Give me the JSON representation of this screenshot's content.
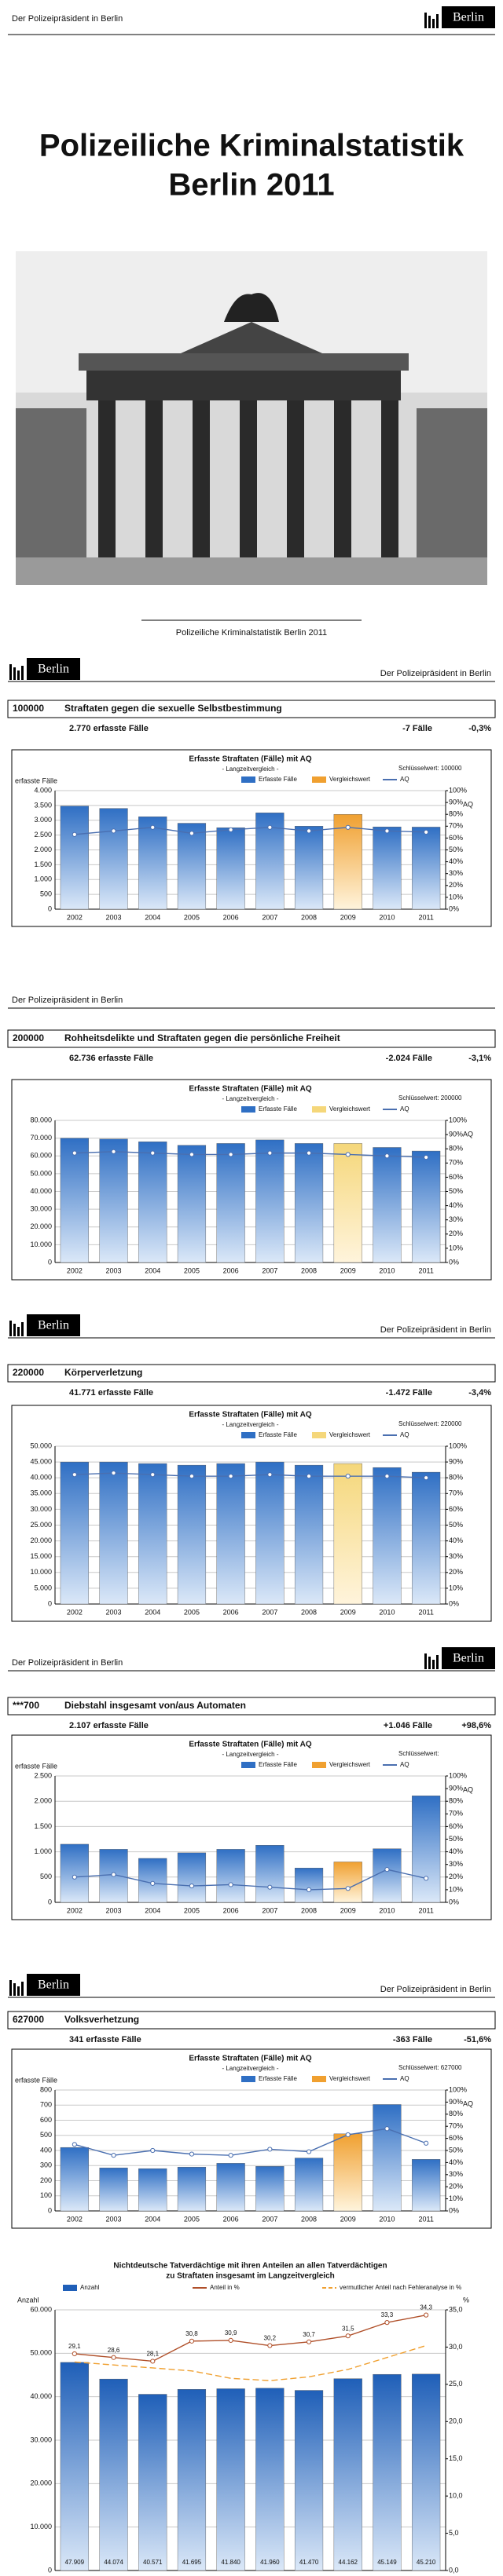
{
  "header": {
    "org": "Der Polizeipräsident in Berlin",
    "logo": "Berlin"
  },
  "title": [
    "Polizeiliche Kriminalstatistik",
    "Berlin 2011"
  ],
  "caption": "Polizeiliche Kriminalstatistik Berlin 2011",
  "sections": [
    {
      "code": "100000",
      "name": "Straftaten gegen die sexuelle Selbstbestimmung",
      "cases": "2.770 erfasste Fälle",
      "change": "-7 Fälle",
      "pct": "-0,3%"
    },
    {
      "code": "200000",
      "name": "Rohheitsdelikte und Straftaten gegen die persönliche Freiheit",
      "cases": "62.736 erfasste Fälle",
      "change": "-2.024 Fälle",
      "pct": "-3,1%"
    },
    {
      "code": "220000",
      "name": "Körperverletzung",
      "cases": "41.771 erfasste Fälle",
      "change": "-1.472 Fälle",
      "pct": "-3,4%"
    },
    {
      "code": "***700",
      "name": "Diebstahl insgesamt von/aus Automaten",
      "cases": "2.107 erfasste Fälle",
      "change": "+1.046 Fälle",
      "pct": "+98,6%"
    },
    {
      "code": "627000",
      "name": "Volksverhetzung",
      "cases": "341 erfasste Fälle",
      "change": "-363 Fälle",
      "pct": "-51,6%"
    }
  ],
  "chart_data": [
    {
      "type": "bar",
      "title": "Erfasste Straftaten (Fälle) mit AQ",
      "subtitle": "- Langzeitvergleich -",
      "key_label": "Schlüsselwert: 100000",
      "y_label": "erfasste Fälle",
      "y2_label": "AQ",
      "categories": [
        "2002",
        "2003",
        "2004",
        "2005",
        "2006",
        "2007",
        "2008",
        "2009",
        "2010",
        "2011"
      ],
      "series": [
        {
          "name": "Erfasste Fälle",
          "color": "#2f6fc4",
          "values": [
            3480,
            3400,
            3120,
            2900,
            2750,
            3250,
            2800,
            3200,
            2777,
            2770
          ]
        },
        {
          "name": "AQ",
          "color": "#4a6fb0",
          "axis": "y2",
          "values": [
            63,
            66,
            69,
            64,
            67,
            69,
            66,
            69,
            66,
            65
          ]
        }
      ],
      "comparison": {
        "name": "Vergleichswert",
        "color": "#f0a030",
        "category": "2009"
      },
      "ylim": [
        0,
        4000
      ],
      "yticks": [
        0,
        500,
        {
          "value": 1000,
          "label": "1.000"
        },
        {
          "value": 1500,
          "label": "1.500"
        },
        {
          "value": 2000,
          "label": "2.000"
        },
        {
          "value": 2500,
          "label": "2.500"
        },
        {
          "value": 3000,
          "label": "3.000"
        },
        {
          "value": 3500,
          "label": "3.500"
        },
        {
          "value": 4000,
          "label": "4.000"
        }
      ],
      "y2lim": [
        0,
        100
      ],
      "y2ticks": [
        {
          "value": 0,
          "label": "0%"
        },
        {
          "value": 10,
          "label": "10%"
        },
        {
          "value": 20,
          "label": "20%"
        },
        {
          "value": 30,
          "label": "30%"
        },
        {
          "value": 40,
          "label": "40%"
        },
        {
          "value": 50,
          "label": "50%"
        },
        {
          "value": 60,
          "label": "60%"
        },
        {
          "value": 70,
          "label": "70%"
        },
        {
          "value": 80,
          "label": "80%"
        },
        {
          "value": 90,
          "label": "90%"
        },
        {
          "value": 100,
          "label": "100%"
        }
      ],
      "grid": true
    },
    {
      "type": "bar",
      "title": "Erfasste Straftaten (Fälle) mit AQ",
      "subtitle": "- Langzeitvergleich -",
      "key_label": "Schlüsselwert: 200000",
      "y2_label": "AQ",
      "categories": [
        "2002",
        "2003",
        "2004",
        "2005",
        "2006",
        "2007",
        "2008",
        "2009",
        "2010",
        "2011"
      ],
      "series": [
        {
          "name": "Erfasste Fälle",
          "color": "#2f6fc4",
          "values": [
            70000,
            69500,
            68000,
            66000,
            67000,
            69000,
            67000,
            67000,
            64760,
            62736
          ]
        },
        {
          "name": "AQ",
          "color": "#4a6fb0",
          "axis": "y2",
          "values": [
            77,
            78,
            77,
            76,
            76,
            77,
            77,
            76,
            75,
            74
          ]
        }
      ],
      "comparison": {
        "name": "Vergleichswert",
        "color": "#f5d77a",
        "category": "2009"
      },
      "ylim": [
        0,
        80000
      ],
      "yticks": [
        0,
        {
          "value": 10000,
          "label": "10.000"
        },
        {
          "value": 20000,
          "label": "20.000"
        },
        {
          "value": 30000,
          "label": "30.000"
        },
        {
          "value": 40000,
          "label": "40.000"
        },
        {
          "value": 50000,
          "label": "50.000"
        },
        {
          "value": 60000,
          "label": "60.000"
        },
        {
          "value": 70000,
          "label": "70.000"
        },
        {
          "value": 80000,
          "label": "80.000"
        }
      ],
      "y2lim": [
        0,
        100
      ],
      "y2ticks": [
        {
          "value": 0,
          "label": "0%"
        },
        {
          "value": 10,
          "label": "10%"
        },
        {
          "value": 20,
          "label": "20%"
        },
        {
          "value": 30,
          "label": "30%"
        },
        {
          "value": 40,
          "label": "40%"
        },
        {
          "value": 50,
          "label": "50%"
        },
        {
          "value": 60,
          "label": "60%"
        },
        {
          "value": 70,
          "label": "70%"
        },
        {
          "value": 80,
          "label": "80%"
        },
        {
          "value": 90,
          "label": "90%"
        },
        {
          "value": 100,
          "label": "100%"
        }
      ],
      "grid": true
    },
    {
      "type": "bar",
      "title": "Erfasste Straftaten (Fälle) mit AQ",
      "subtitle": "- Langzeitvergleich -",
      "key_label": "Schlüsselwert: 220000",
      "categories": [
        "2002",
        "2003",
        "2004",
        "2005",
        "2006",
        "2007",
        "2008",
        "2009",
        "2010",
        "2011"
      ],
      "series": [
        {
          "name": "Erfasste Fälle",
          "color": "#2f6fc4",
          "values": [
            45000,
            45000,
            44500,
            44000,
            44500,
            45000,
            44000,
            44500,
            43243,
            41771
          ]
        },
        {
          "name": "AQ",
          "color": "#4a6fb0",
          "axis": "y2",
          "values": [
            82,
            83,
            82,
            81,
            81,
            82,
            81,
            81,
            81,
            80
          ]
        }
      ],
      "comparison": {
        "name": "Vergleichswert",
        "color": "#f5d77a",
        "category": "2009"
      },
      "ylim": [
        0,
        50000
      ],
      "yticks": [
        0,
        {
          "value": 5000,
          "label": "5.000"
        },
        {
          "value": 10000,
          "label": "10.000"
        },
        {
          "value": 15000,
          "label": "15.000"
        },
        {
          "value": 20000,
          "label": "20.000"
        },
        {
          "value": 25000,
          "label": "25.000"
        },
        {
          "value": 30000,
          "label": "30.000"
        },
        {
          "value": 35000,
          "label": "35.000"
        },
        {
          "value": 40000,
          "label": "40.000"
        },
        {
          "value": 45000,
          "label": "45.000"
        },
        {
          "value": 50000,
          "label": "50.000"
        }
      ],
      "y2lim": [
        0,
        100
      ],
      "y2ticks": [
        {
          "value": 0,
          "label": "0%"
        },
        {
          "value": 10,
          "label": "10%"
        },
        {
          "value": 20,
          "label": "20%"
        },
        {
          "value": 30,
          "label": "30%"
        },
        {
          "value": 40,
          "label": "40%"
        },
        {
          "value": 50,
          "label": "50%"
        },
        {
          "value": 60,
          "label": "60%"
        },
        {
          "value": 70,
          "label": "70%"
        },
        {
          "value": 80,
          "label": "80%"
        },
        {
          "value": 90,
          "label": "90%"
        },
        {
          "value": 100,
          "label": "100%"
        }
      ],
      "grid": true
    },
    {
      "type": "bar",
      "title": "Erfasste Straftaten (Fälle) mit AQ",
      "subtitle": "- Langzeitvergleich -",
      "key_label": "Schlüsselwert:",
      "y_label": "erfasste Fälle",
      "y2_label": "AQ",
      "categories": [
        "2002",
        "2003",
        "2004",
        "2005",
        "2006",
        "2007",
        "2008",
        "2009",
        "2010",
        "2011"
      ],
      "series": [
        {
          "name": "Erfasste Fälle",
          "color": "#2f6fc4",
          "values": [
            1150,
            1050,
            870,
            980,
            1050,
            1130,
            680,
            800,
            1061,
            2107
          ]
        },
        {
          "name": "AQ",
          "color": "#4a6fb0",
          "axis": "y2",
          "values": [
            20,
            22,
            15,
            13,
            14,
            12,
            10,
            11,
            26,
            19
          ]
        }
      ],
      "comparison": {
        "name": "Vergleichswert",
        "color": "#f0a030",
        "category": "2009"
      },
      "ylim": [
        0,
        2500
      ],
      "yticks": [
        0,
        500,
        {
          "value": 1000,
          "label": "1.000"
        },
        {
          "value": 1500,
          "label": "1.500"
        },
        {
          "value": 2000,
          "label": "2.000"
        },
        {
          "value": 2500,
          "label": "2.500"
        }
      ],
      "y2lim": [
        0,
        100
      ],
      "y2ticks": [
        {
          "value": 0,
          "label": "0%"
        },
        {
          "value": 10,
          "label": "10%"
        },
        {
          "value": 20,
          "label": "20%"
        },
        {
          "value": 30,
          "label": "30%"
        },
        {
          "value": 40,
          "label": "40%"
        },
        {
          "value": 50,
          "label": "50%"
        },
        {
          "value": 60,
          "label": "60%"
        },
        {
          "value": 70,
          "label": "70%"
        },
        {
          "value": 80,
          "label": "80%"
        },
        {
          "value": 90,
          "label": "90%"
        },
        {
          "value": 100,
          "label": "100%"
        }
      ],
      "grid": true
    },
    {
      "type": "bar",
      "title": "Erfasste Straftaten (Fälle) mit AQ",
      "subtitle": "- Langzeitvergleich -",
      "key_label": "Schlüsselwert: 627000",
      "y_label": "erfasste Fälle",
      "y2_label": "AQ",
      "categories": [
        "2002",
        "2003",
        "2004",
        "2005",
        "2006",
        "2007",
        "2008",
        "2009",
        "2010",
        "2011"
      ],
      "series": [
        {
          "name": "Erfasste Fälle",
          "color": "#2f6fc4",
          "values": [
            420,
            285,
            280,
            290,
            315,
            295,
            350,
            510,
            704,
            341
          ]
        },
        {
          "name": "AQ",
          "color": "#4a6fb0",
          "axis": "y2",
          "values": [
            55,
            46,
            50,
            47,
            46,
            51,
            49,
            63,
            68,
            56
          ]
        }
      ],
      "comparison": {
        "name": "Vergleichswert",
        "color": "#f0a030",
        "category": "2009"
      },
      "ylim": [
        0,
        800
      ],
      "yticks": [
        0,
        100,
        200,
        300,
        400,
        500,
        600,
        700,
        800
      ],
      "y2lim": [
        0,
        100
      ],
      "y2ticks": [
        {
          "value": 0,
          "label": "0%"
        },
        {
          "value": 10,
          "label": "10%"
        },
        {
          "value": 20,
          "label": "20%"
        },
        {
          "value": 30,
          "label": "30%"
        },
        {
          "value": 40,
          "label": "40%"
        },
        {
          "value": 50,
          "label": "50%"
        },
        {
          "value": 60,
          "label": "60%"
        },
        {
          "value": 70,
          "label": "70%"
        },
        {
          "value": 80,
          "label": "80%"
        },
        {
          "value": 90,
          "label": "90%"
        },
        {
          "value": 100,
          "label": "100%"
        }
      ],
      "grid": true
    },
    {
      "type": "bar",
      "title": "Nichtdeutsche Tatverdächtige mit ihren Anteilen an allen Tatverdächtigen",
      "subtitle": "zu Straftaten insgesamt im Langzeitvergleich",
      "y_label": "Anzahl",
      "y2_label": "%",
      "series": [
        {
          "name": "Anzahl",
          "color": "#1f5fb8",
          "values": [
            47909,
            44074,
            40571,
            41695,
            41840,
            41960,
            41470,
            44162,
            45149,
            45210
          ],
          "value_labels": [
            "47.909",
            "44.074",
            "40.571",
            "41.695",
            "41.840",
            "41.960",
            "41.470",
            "44.162",
            "45.149",
            "45.210"
          ]
        },
        {
          "name": "Anteil in %",
          "color": "#b0502a",
          "axis": "y2",
          "values": [
            29.1,
            28.6,
            28.1,
            30.8,
            30.9,
            30.2,
            30.7,
            31.5,
            33.3,
            34.3
          ],
          "value_labels": [
            "29,1",
            "28,6",
            "28,1",
            "30,8",
            "30,9",
            "30,2",
            "30,7",
            "31,5",
            "33,3",
            "34,3"
          ]
        },
        {
          "name": "vermutlicher Anteil nach Fehleranalyse in %",
          "color": "#f0a030",
          "axis": "y2",
          "dashed": true,
          "values": [
            28.0,
            27.6,
            27.2,
            26.8,
            25.8,
            25.5,
            26.0,
            27.0,
            28.6,
            30.2
          ]
        }
      ],
      "ylim": [
        0,
        60000
      ],
      "yticks": [
        0,
        {
          "value": 10000,
          "label": "10.000"
        },
        {
          "value": 20000,
          "label": "20.000"
        },
        {
          "value": 30000,
          "label": "30.000"
        },
        {
          "value": 40000,
          "label": "40.000"
        },
        {
          "value": 50000,
          "label": "50.000"
        },
        {
          "value": 60000,
          "label": "60.000"
        }
      ],
      "y2lim": [
        0,
        35
      ],
      "y2ticks": [
        {
          "value": 0,
          "label": "0,0"
        },
        {
          "value": 5,
          "label": "5,0"
        },
        {
          "value": 10,
          "label": "10,0"
        },
        {
          "value": 15,
          "label": "15,0"
        },
        {
          "value": 20,
          "label": "20,0"
        },
        {
          "value": 25,
          "label": "25,0"
        },
        {
          "value": 30,
          "label": "30,0"
        },
        {
          "value": 35,
          "label": "35,0"
        }
      ],
      "grid": true
    }
  ]
}
